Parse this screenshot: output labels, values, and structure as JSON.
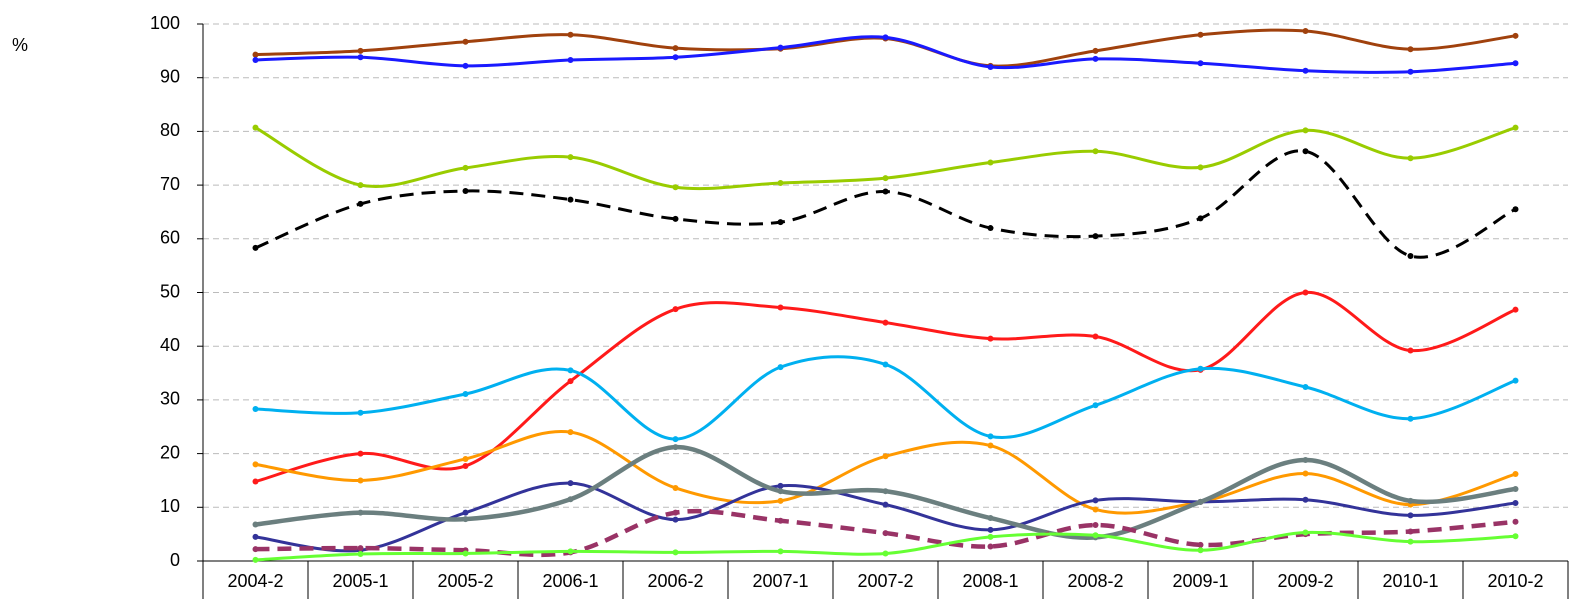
{
  "chart_data": {
    "type": "line",
    "y_label": "%",
    "smooth": true,
    "grid": true,
    "categories": [
      "2004-2",
      "2005-1",
      "2005-2",
      "2006-1",
      "2006-2",
      "2007-1",
      "2007-2",
      "2008-1",
      "2008-2",
      "2009-1",
      "2009-2",
      "2010-1",
      "2010-2"
    ],
    "ylim": [
      0,
      100
    ],
    "yticks": [
      0,
      10,
      20,
      30,
      40,
      50,
      60,
      70,
      80,
      90,
      100
    ],
    "series": [
      {
        "color": "#a0410d",
        "line_width": 3,
        "dashed": false,
        "values": [
          94.3,
          95,
          96.7,
          98,
          95.5,
          95.4,
          97.3,
          92.2,
          95,
          98,
          98.7,
          95.3,
          97.8
        ]
      },
      {
        "color": "#1a1aff",
        "line_width": 3,
        "dashed": false,
        "values": [
          93.3,
          93.8,
          92.2,
          93.3,
          93.8,
          95.6,
          97.5,
          92,
          93.5,
          92.7,
          91.3,
          91.1,
          92.7
        ]
      },
      {
        "color": "#99cc00",
        "line_width": 3,
        "dashed": false,
        "values": [
          80.7,
          70,
          73.2,
          75.2,
          69.6,
          70.4,
          71.3,
          74.2,
          76.3,
          73.3,
          80.2,
          75,
          80.7
        ]
      },
      {
        "color": "#000000",
        "line_width": 3,
        "dashed": true,
        "values": [
          58.3,
          66.5,
          68.9,
          67.3,
          63.7,
          63.1,
          68.8,
          62,
          60.5,
          63.8,
          76.3,
          56.8,
          65.5
        ]
      },
      {
        "color": "#ff1a1a",
        "line_width": 3,
        "dashed": false,
        "values": [
          14.8,
          20,
          17.7,
          33.5,
          46.9,
          47.2,
          44.4,
          41.4,
          41.8,
          35.6,
          50,
          39.2,
          46.8
        ]
      },
      {
        "color": "#00b0f0",
        "line_width": 3,
        "dashed": false,
        "values": [
          28.3,
          27.6,
          31.1,
          35.5,
          22.7,
          36.1,
          36.6,
          23.2,
          29,
          35.8,
          32.4,
          26.5,
          33.6
        ]
      },
      {
        "color": "#ff9900",
        "line_width": 3,
        "dashed": false,
        "values": [
          18,
          15,
          19,
          24,
          13.6,
          11.2,
          19.5,
          21.5,
          9.6,
          11,
          16.3,
          10.5,
          16.2
        ]
      },
      {
        "color": "#333399",
        "line_width": 3,
        "dashed": false,
        "values": [
          4.5,
          2,
          9,
          14.5,
          7.7,
          14,
          10.5,
          5.8,
          11.3,
          11,
          11.4,
          8.5,
          10.8
        ]
      },
      {
        "color": "#6b7f7f",
        "line_width": 4.5,
        "dashed": false,
        "values": [
          6.8,
          9,
          7.8,
          11.5,
          21.2,
          13,
          13,
          8,
          4.4,
          11,
          18.8,
          11.2,
          13.4
        ]
      },
      {
        "color": "#993366",
        "line_width": 4.5,
        "dashed": true,
        "values": [
          2.2,
          2.4,
          2.0,
          1.6,
          9,
          7.5,
          5.2,
          2.7,
          6.7,
          3,
          5,
          5.5,
          7.3
        ]
      },
      {
        "color": "#66ff33",
        "line_width": 3,
        "dashed": false,
        "values": [
          0.2,
          1.3,
          1.4,
          1.8,
          1.6,
          1.8,
          1.4,
          4.5,
          4.8,
          2,
          5.3,
          3.6,
          4.6
        ]
      }
    ]
  }
}
